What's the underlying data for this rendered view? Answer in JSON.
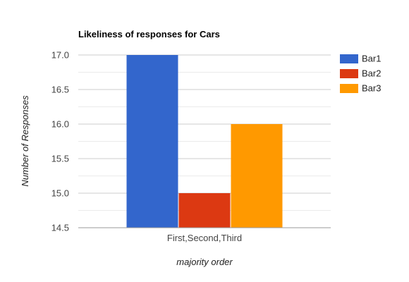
{
  "chart_data": {
    "type": "bar",
    "title": "Likeliness of responses for Cars",
    "xlabel": "majority order",
    "ylabel": "Number of Responses",
    "categories": [
      "First,Second,Third"
    ],
    "series": [
      {
        "name": "Bar1",
        "values": [
          17.0
        ],
        "color": "#3366cc"
      },
      {
        "name": "Bar2",
        "values": [
          15.0
        ],
        "color": "#dc3912"
      },
      {
        "name": "Bar3",
        "values": [
          16.0
        ],
        "color": "#ff9900"
      }
    ],
    "ylim": [
      14.5,
      17.0
    ],
    "yticks": [
      "14.5",
      "15.0",
      "15.5",
      "16.0",
      "16.5",
      "17.0"
    ],
    "ytick_values": [
      14.5,
      15.0,
      15.5,
      16.0,
      16.5,
      17.0
    ],
    "grid": true,
    "minor_grid": true,
    "legend_position": "right",
    "colors": {
      "major_grid": "#cccccc",
      "minor_grid": "#ebebeb",
      "baseline": "#999999"
    }
  }
}
